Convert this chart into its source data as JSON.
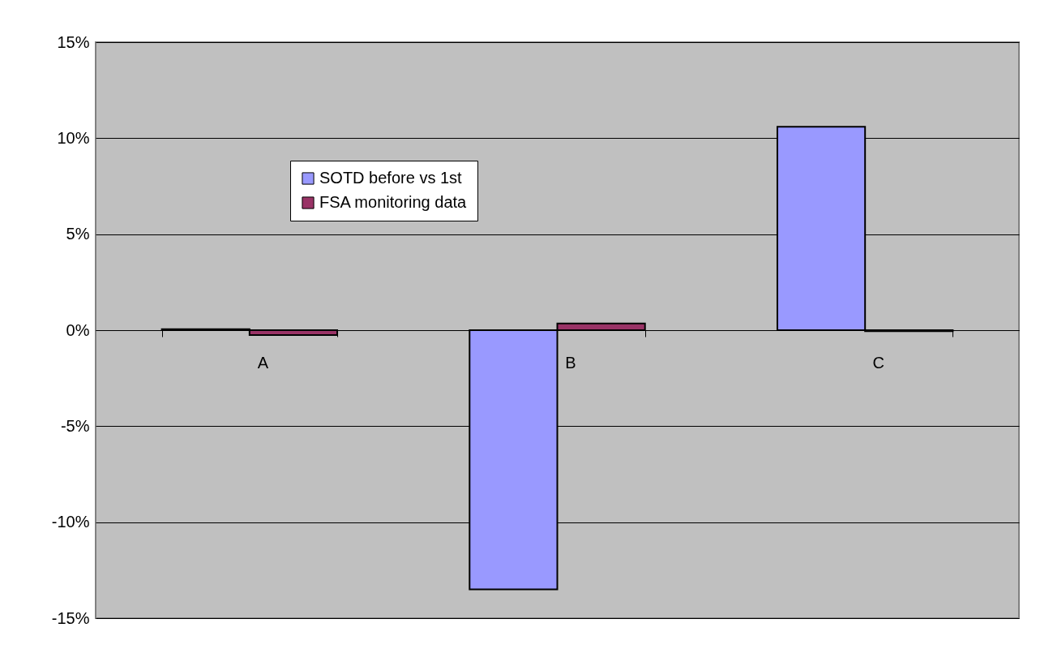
{
  "chart_data": {
    "type": "bar",
    "categories": [
      "A",
      "B",
      "C"
    ],
    "series": [
      {
        "name": "SOTD before vs 1st",
        "color": "#9999ff",
        "values": [
          0.05,
          -13.5,
          10.6
        ]
      },
      {
        "name": "FSA monitoring data",
        "color": "#993366",
        "values": [
          -0.25,
          0.35,
          -0.05
        ]
      }
    ],
    "ylim": [
      -15,
      15
    ],
    "yticks": [
      {
        "value": -15,
        "label": "-15%"
      },
      {
        "value": -10,
        "label": "-10%"
      },
      {
        "value": -5,
        "label": "-5%"
      },
      {
        "value": 0,
        "label": "0%"
      },
      {
        "value": 5,
        "label": "5%"
      },
      {
        "value": 10,
        "label": "10%"
      },
      {
        "value": 15,
        "label": "15%"
      }
    ],
    "grid": "y",
    "legend": "top left"
  }
}
